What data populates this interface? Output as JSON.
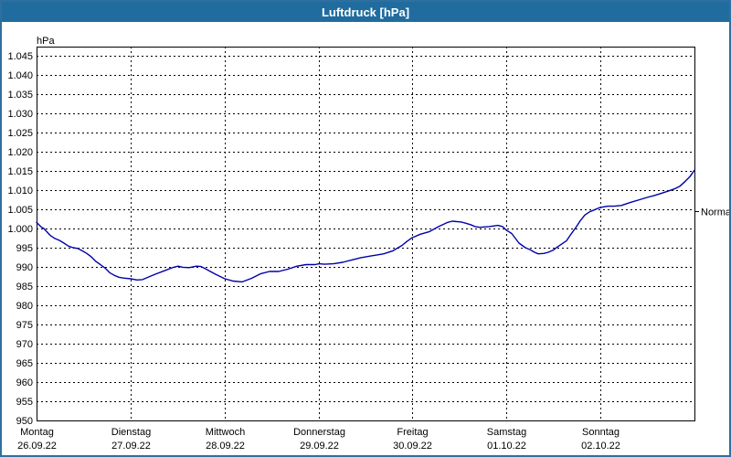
{
  "window": {
    "title": "Luftdruck [hPa]"
  },
  "colors": {
    "titlebar_bg": "#206c9e",
    "titlebar_text": "#ffffff",
    "window_border": "#2f6f9f",
    "background": "#ffffff",
    "plot_border": "#000000",
    "grid": "#000000",
    "axis_text": "#000000",
    "line": "#0000aa"
  },
  "chart_data": {
    "type": "line",
    "title": "Luftdruck [hPa]",
    "unit_label": "hPa",
    "ylim": [
      950,
      1047
    ],
    "grid": "dashed",
    "yticks": [
      {
        "value": 1045,
        "label": "1.045"
      },
      {
        "value": 1040,
        "label": "1.040"
      },
      {
        "value": 1035,
        "label": "1.035"
      },
      {
        "value": 1030,
        "label": "1.030"
      },
      {
        "value": 1025,
        "label": "1.025"
      },
      {
        "value": 1020,
        "label": "1.020"
      },
      {
        "value": 1015,
        "label": "1.015"
      },
      {
        "value": 1010,
        "label": "1.010"
      },
      {
        "value": 1005,
        "label": "1.005"
      },
      {
        "value": 1000,
        "label": "1.000"
      },
      {
        "value": 995,
        "label": "995"
      },
      {
        "value": 990,
        "label": "990"
      },
      {
        "value": 985,
        "label": "985"
      },
      {
        "value": 980,
        "label": "980"
      },
      {
        "value": 975,
        "label": "975"
      },
      {
        "value": 970,
        "label": "970"
      },
      {
        "value": 965,
        "label": "965"
      },
      {
        "value": 960,
        "label": "960"
      },
      {
        "value": 955,
        "label": "955"
      },
      {
        "value": 950,
        "label": "950"
      }
    ],
    "x_days": [
      {
        "day": "Montag",
        "date": "26.09.22"
      },
      {
        "day": "Dienstag",
        "date": "27.09.22"
      },
      {
        "day": "Mittwoch",
        "date": "28.09.22"
      },
      {
        "day": "Donnerstag",
        "date": "29.09.22"
      },
      {
        "day": "Freitag",
        "date": "30.09.22"
      },
      {
        "day": "Samstag",
        "date": "01.10.22"
      },
      {
        "day": "Sonntag",
        "date": "02.10.22"
      }
    ],
    "normal_marker": {
      "label": "Normal",
      "value": 1004.5
    },
    "series": [
      {
        "name": "Luftdruck",
        "points": [
          [
            0.0,
            1001.6
          ],
          [
            0.049,
            1000.4
          ],
          [
            0.078,
            1000.0
          ],
          [
            0.146,
            998.2
          ],
          [
            0.194,
            997.4
          ],
          [
            0.243,
            996.9
          ],
          [
            0.292,
            996.2
          ],
          [
            0.34,
            995.4
          ],
          [
            0.389,
            995.0
          ],
          [
            0.437,
            994.8
          ],
          [
            0.486,
            994.2
          ],
          [
            0.535,
            993.5
          ],
          [
            0.583,
            992.6
          ],
          [
            0.632,
            991.4
          ],
          [
            0.68,
            990.6
          ],
          [
            0.729,
            989.7
          ],
          [
            0.778,
            988.5
          ],
          [
            0.826,
            987.8
          ],
          [
            0.875,
            987.3
          ],
          [
            0.923,
            987.1
          ],
          [
            1.0,
            986.9
          ],
          [
            1.069,
            986.6
          ],
          [
            1.128,
            986.7
          ],
          [
            1.196,
            987.4
          ],
          [
            1.264,
            988.1
          ],
          [
            1.361,
            989.0
          ],
          [
            1.458,
            989.9
          ],
          [
            1.507,
            990.2
          ],
          [
            1.556,
            989.9
          ],
          [
            1.624,
            989.8
          ],
          [
            1.701,
            990.2
          ],
          [
            1.75,
            990.1
          ],
          [
            1.799,
            989.5
          ],
          [
            1.896,
            988.2
          ],
          [
            2.003,
            986.9
          ],
          [
            2.09,
            986.3
          ],
          [
            2.188,
            986.1
          ],
          [
            2.285,
            987.0
          ],
          [
            2.382,
            988.2
          ],
          [
            2.479,
            988.8
          ],
          [
            2.576,
            988.8
          ],
          [
            2.674,
            989.4
          ],
          [
            2.771,
            990.2
          ],
          [
            2.868,
            990.6
          ],
          [
            2.965,
            990.6
          ],
          [
            3.004,
            990.8
          ],
          [
            3.063,
            990.7
          ],
          [
            3.16,
            990.8
          ],
          [
            3.257,
            991.2
          ],
          [
            3.354,
            991.8
          ],
          [
            3.451,
            992.4
          ],
          [
            3.549,
            992.8
          ],
          [
            3.646,
            993.2
          ],
          [
            3.694,
            993.4
          ],
          [
            3.792,
            994.2
          ],
          [
            3.889,
            995.6
          ],
          [
            3.938,
            996.6
          ],
          [
            3.996,
            997.6
          ],
          [
            4.083,
            998.5
          ],
          [
            4.181,
            999.2
          ],
          [
            4.278,
            1000.5
          ],
          [
            4.375,
            1001.6
          ],
          [
            4.424,
            1001.9
          ],
          [
            4.521,
            1001.7
          ],
          [
            4.618,
            1001.0
          ],
          [
            4.667,
            1000.5
          ],
          [
            4.715,
            1000.3
          ],
          [
            4.813,
            1000.5
          ],
          [
            4.91,
            1000.8
          ],
          [
            4.958,
            1000.5
          ],
          [
            4.997,
            999.6
          ],
          [
            5.056,
            998.7
          ],
          [
            5.133,
            996.2
          ],
          [
            5.201,
            995.0
          ],
          [
            5.25,
            994.5
          ],
          [
            5.299,
            993.8
          ],
          [
            5.337,
            993.4
          ],
          [
            5.396,
            993.5
          ],
          [
            5.444,
            993.8
          ],
          [
            5.493,
            994.3
          ],
          [
            5.542,
            995.2
          ],
          [
            5.59,
            996.0
          ],
          [
            5.639,
            996.8
          ],
          [
            5.688,
            998.6
          ],
          [
            5.736,
            1000.2
          ],
          [
            5.785,
            1002.0
          ],
          [
            5.833,
            1003.5
          ],
          [
            5.882,
            1004.3
          ],
          [
            5.931,
            1004.8
          ],
          [
            5.999,
            1005.5
          ],
          [
            6.077,
            1005.8
          ],
          [
            6.145,
            1005.8
          ],
          [
            6.222,
            1006.0
          ],
          [
            6.319,
            1006.8
          ],
          [
            6.417,
            1007.5
          ],
          [
            6.495,
            1008.1
          ],
          [
            6.572,
            1008.6
          ],
          [
            6.65,
            1009.2
          ],
          [
            6.728,
            1009.8
          ],
          [
            6.786,
            1010.3
          ],
          [
            6.844,
            1011.0
          ],
          [
            6.903,
            1012.3
          ],
          [
            6.951,
            1013.5
          ],
          [
            7.0,
            1015.2
          ]
        ]
      }
    ]
  }
}
